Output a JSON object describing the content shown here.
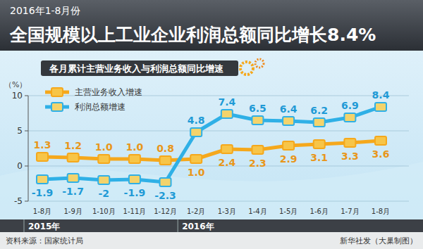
{
  "chart_data": {
    "type": "line",
    "subtitle": "2016年1-8月份",
    "title": "全国规模以上工业企业利润总额同比增长8.4%",
    "chart_title": "各月累计主营业务收入与利润总额同比增速",
    "y_label": "（%）",
    "categories": [
      "1-8月",
      "1-9月",
      "1-10月",
      "1-11月",
      "1-12月",
      "1-2月",
      "1-3月",
      "1-4月",
      "1-5月",
      "1-6月",
      "1-7月",
      "1-8月"
    ],
    "x_groups": [
      {
        "label": "2015年",
        "start": 0
      },
      {
        "label": "2016年",
        "start": 5
      }
    ],
    "series": [
      {
        "name": "主营业务收入增速",
        "color": "#f5a81c",
        "marker": "square",
        "values": [
          1.3,
          1.2,
          1.0,
          1.0,
          0.8,
          1.0,
          2.4,
          2.3,
          2.9,
          3.1,
          3.3,
          3.6
        ],
        "value_labels": [
          "1.3",
          "1.2",
          "1.0",
          "1.0",
          "0.8",
          "1.0",
          "2.4",
          "2.3",
          "2.9",
          "3.1",
          "3.3",
          "3.6"
        ]
      },
      {
        "name": "利润总额增速",
        "color": "#2fb0e6",
        "marker": "square",
        "values": [
          -1.9,
          -1.7,
          -2.0,
          -1.9,
          -2.3,
          4.8,
          7.4,
          6.5,
          6.4,
          6.2,
          6.9,
          8.4
        ]
      }
    ],
    "ylim": [
      -5,
      10
    ],
    "yticks": [
      -5,
      0,
      5,
      10
    ],
    "grid": true,
    "legend": "top-left",
    "data_labels": true,
    "source": "资料来源：国家统计局",
    "credit": "新华社发（大巢制图）"
  }
}
